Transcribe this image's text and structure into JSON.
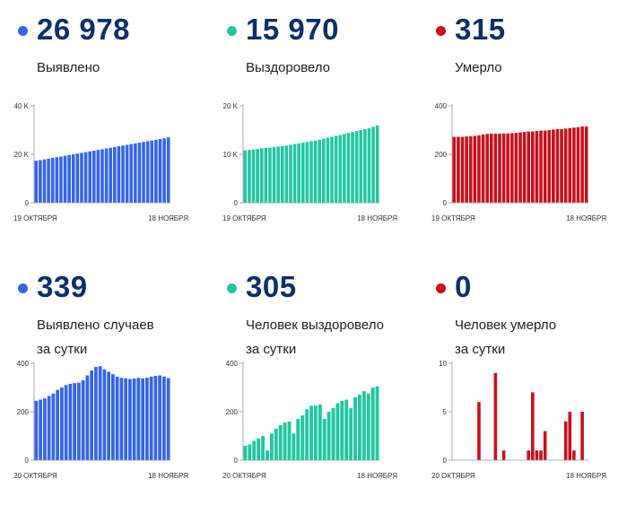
{
  "panels": [
    {
      "id": "cases-total",
      "value": "26 978",
      "label_lines": [
        "Выявлено"
      ],
      "color": "#3566e6",
      "dot_color": "#3566e6",
      "x_start_label": "19 ОКТЯБРЯ",
      "x_end_label": "18 НОЯБРЯ"
    },
    {
      "id": "recovered-total",
      "value": "15 970",
      "label_lines": [
        "Выздоровело"
      ],
      "color": "#22c6a2",
      "dot_color": "#22c6a2",
      "x_start_label": "19 ОКТЯБРЯ",
      "x_end_label": "18 НОЯБРЯ"
    },
    {
      "id": "deaths-total",
      "value": "315",
      "label_lines": [
        "Умерло"
      ],
      "color": "#c8101e",
      "dot_color": "#c8101e",
      "x_start_label": "19 ОКТЯБРЯ",
      "x_end_label": "18 НОЯБРЯ"
    },
    {
      "id": "cases-daily",
      "value": "339",
      "label_lines": [
        "Выявлено случаев",
        "за сутки"
      ],
      "color": "#3566e6",
      "dot_color": "#3566e6",
      "x_start_label": "20 ОКТЯБРЯ",
      "x_end_label": "18 НОЯБРЯ"
    },
    {
      "id": "recovered-daily",
      "value": "305",
      "label_lines": [
        "Человек выздоровело",
        "за сутки"
      ],
      "color": "#22c6a2",
      "dot_color": "#22c6a2",
      "x_start_label": "20 ОКТЯБРЯ",
      "x_end_label": "18 НОЯБРЯ"
    },
    {
      "id": "deaths-daily",
      "value": "0",
      "label_lines": [
        "Человек умерло",
        "за сутки"
      ],
      "color": "#c8101e",
      "dot_color": "#c8101e",
      "x_start_label": "20 ОКТЯБРЯ",
      "x_end_label": "18 НОЯБРЯ"
    }
  ],
  "chart_data": [
    {
      "type": "bar",
      "ylim": [
        0,
        40000
      ],
      "yticks": [
        {
          "v": 0,
          "label": "0"
        },
        {
          "v": 20000,
          "label": "20 K"
        },
        {
          "v": 40000,
          "label": "40 K"
        }
      ],
      "values": [
        17300,
        17600,
        17900,
        18200,
        18500,
        18800,
        19100,
        19400,
        19700,
        20000,
        20300,
        20600,
        20900,
        21200,
        21500,
        21800,
        22100,
        22400,
        22700,
        23000,
        23300,
        23600,
        23900,
        24200,
        24500,
        24800,
        25100,
        25400,
        25700,
        26000,
        26300,
        26600,
        26978
      ]
    },
    {
      "type": "bar",
      "ylim": [
        0,
        20000
      ],
      "yticks": [
        {
          "v": 0,
          "label": "0"
        },
        {
          "v": 10000,
          "label": "10 K"
        },
        {
          "v": 20000,
          "label": "20 K"
        }
      ],
      "values": [
        10800,
        10900,
        11000,
        11100,
        11200,
        11300,
        11400,
        11500,
        11600,
        11700,
        11800,
        11950,
        12100,
        12250,
        12400,
        12550,
        12700,
        12850,
        13000,
        13200,
        13400,
        13600,
        13800,
        14000,
        14200,
        14400,
        14600,
        14800,
        15000,
        15200,
        15400,
        15665,
        15970
      ]
    },
    {
      "type": "bar",
      "ylim": [
        0,
        400
      ],
      "yticks": [
        {
          "v": 0,
          "label": "0"
        },
        {
          "v": 200,
          "label": "200"
        },
        {
          "v": 400,
          "label": "400"
        }
      ],
      "values": [
        272,
        272,
        272,
        274,
        274,
        276,
        278,
        282,
        284,
        285,
        285,
        285,
        286,
        286,
        287,
        288,
        290,
        292,
        294,
        294,
        296,
        298,
        298,
        300,
        302,
        304,
        304,
        306,
        308,
        310,
        312,
        315,
        315
      ]
    },
    {
      "type": "bar",
      "ylim": [
        0,
        400
      ],
      "yticks": [
        {
          "v": 0,
          "label": "0"
        },
        {
          "v": 200,
          "label": "200"
        },
        {
          "v": 400,
          "label": "400"
        }
      ],
      "values": [
        245,
        250,
        255,
        265,
        275,
        290,
        300,
        310,
        315,
        318,
        320,
        330,
        350,
        370,
        385,
        388,
        375,
        365,
        355,
        345,
        340,
        338,
        335,
        337,
        340,
        338,
        340,
        345,
        348,
        350,
        345,
        339
      ]
    },
    {
      "type": "bar",
      "ylim": [
        0,
        400
      ],
      "yticks": [
        {
          "v": 0,
          "label": "0"
        },
        {
          "v": 200,
          "label": "200"
        },
        {
          "v": 400,
          "label": "400"
        }
      ],
      "values": [
        60,
        65,
        80,
        90,
        100,
        40,
        110,
        130,
        145,
        155,
        160,
        110,
        170,
        185,
        210,
        225,
        225,
        230,
        170,
        200,
        215,
        235,
        245,
        250,
        215,
        260,
        270,
        285,
        275,
        300,
        305
      ]
    },
    {
      "type": "bar",
      "ylim": [
        0,
        10
      ],
      "yticks": [
        {
          "v": 0,
          "label": "0"
        },
        {
          "v": 5,
          "label": "5"
        },
        {
          "v": 10,
          "label": "10"
        }
      ],
      "values": [
        0,
        0,
        0,
        0,
        0,
        0,
        6,
        0,
        0,
        0,
        9,
        0,
        1,
        0,
        0,
        0,
        0,
        0,
        1,
        7,
        1,
        1,
        3,
        0,
        0,
        0,
        0,
        4,
        5,
        1,
        0,
        5,
        0
      ]
    }
  ]
}
